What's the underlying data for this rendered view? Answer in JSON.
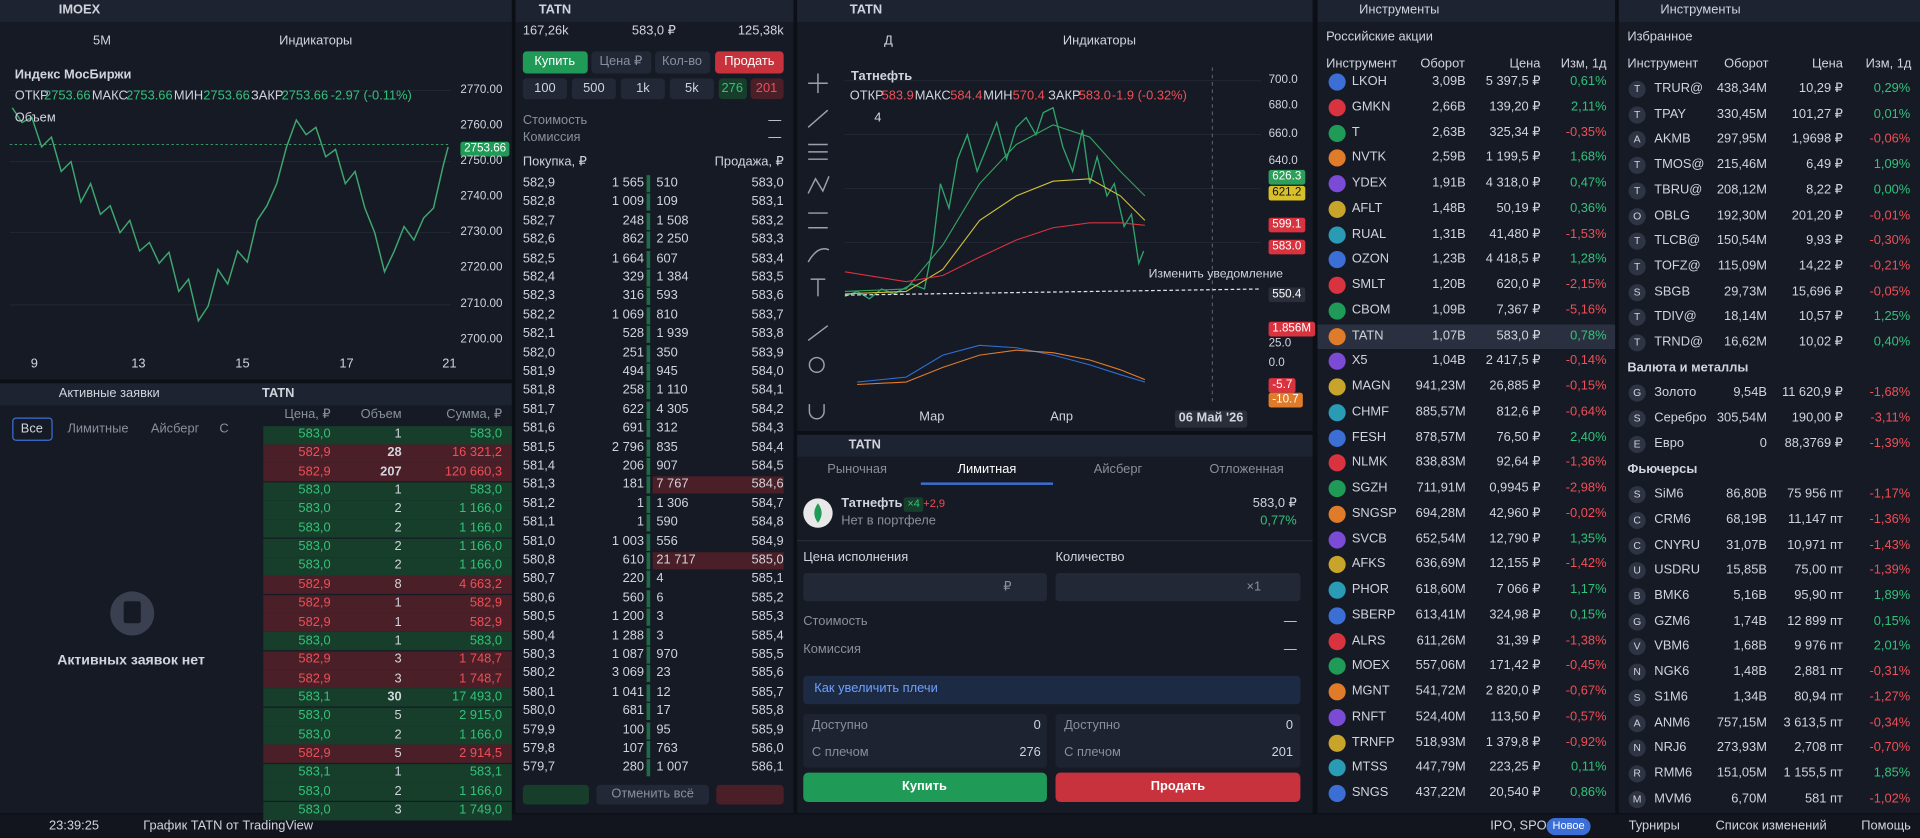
{
  "left_chart": {
    "ticker": "IMOEX",
    "timeframe": "5M",
    "indicators": "Индикаторы",
    "title": "Индекс МосБиржи",
    "ohlc": [
      [
        "ОТКР",
        "2753.66"
      ],
      [
        "МАКС",
        "2753.66"
      ],
      [
        "МИН",
        "2753.66"
      ],
      [
        "ЗАКР",
        "2753.66"
      ]
    ],
    "change": "-2.97 (-0.11%)",
    "volume": "Объем",
    "price_scale": [
      "2770.00",
      "2760.00",
      "2753.66",
      "2750.00",
      "2740.00",
      "2730.00",
      "2720.00",
      "2710.00",
      "2700.00"
    ],
    "time_scale": [
      "9",
      "13",
      "15",
      "17",
      "21"
    ]
  },
  "active_orders": {
    "title": "Активные заявки",
    "tabs": [
      "Все",
      "Лимитные",
      "Айсберг",
      "С"
    ],
    "empty": "Активных заявок нет"
  },
  "trades": {
    "ticker": "TATN",
    "columns": [
      "Цена, ₽",
      "Объем",
      "Сумма, ₽"
    ],
    "rows": [
      [
        "583,0",
        "1",
        "583,0"
      ],
      [
        "582,9",
        "28",
        "16 321,2"
      ],
      [
        "582,9",
        "207",
        "120 660,3"
      ],
      [
        "583,0",
        "1",
        "583,0"
      ],
      [
        "583,0",
        "2",
        "1 166,0"
      ],
      [
        "583,0",
        "2",
        "1 166,0"
      ],
      [
        "583,0",
        "2",
        "1 166,0"
      ],
      [
        "583,0",
        "2",
        "1 166,0"
      ],
      [
        "582,9",
        "8",
        "4 663,2"
      ],
      [
        "582,9",
        "1",
        "582,9"
      ],
      [
        "582,9",
        "1",
        "582,9"
      ],
      [
        "583,0",
        "1",
        "583,0"
      ],
      [
        "582,9",
        "3",
        "1 748,7"
      ],
      [
        "582,9",
        "3",
        "1 748,7"
      ],
      [
        "583,1",
        "30",
        "17 493,0"
      ],
      [
        "583,0",
        "5",
        "2 915,0"
      ],
      [
        "583,0",
        "2",
        "1 166,0"
      ],
      [
        "582,9",
        "5",
        "2 914,5"
      ],
      [
        "583,1",
        "1",
        "583,1"
      ],
      [
        "583,0",
        "2",
        "1 166,0"
      ],
      [
        "583,0",
        "3",
        "1 749,0"
      ]
    ],
    "sides": [
      "buy",
      "sell",
      "sell",
      "buy",
      "buy",
      "buy",
      "buy",
      "buy",
      "sell",
      "sell",
      "sell",
      "buy",
      "sell",
      "sell",
      "buy",
      "buy",
      "buy",
      "sell",
      "buy",
      "buy",
      "buy"
    ]
  },
  "order_book": {
    "ticker": "TATN",
    "bid_total": "167,26k",
    "last": "583,0 ₽",
    "ask_total": "125,38k",
    "buy": "Купить",
    "price_field": "Цена ₽",
    "qty_field": "Кол-во",
    "sell": "Продать",
    "quick_qty": [
      "100",
      "500",
      "1k",
      "5k"
    ],
    "max_buy": "276",
    "max_sell": "201",
    "cost": "Стоимость",
    "cost_value": "—",
    "fee": "Комиссия",
    "fee_value": "—",
    "bid_header": "Покупка, ₽",
    "ask_header": "Продажа, ₽",
    "cancel_all": "Отменить всё",
    "rows": [
      [
        "582,9",
        "1 565",
        "510",
        "583,0"
      ],
      [
        "582,8",
        "1 009",
        "109",
        "583,1"
      ],
      [
        "582,7",
        "248",
        "1 508",
        "583,2"
      ],
      [
        "582,6",
        "862",
        "2 250",
        "583,3"
      ],
      [
        "582,5",
        "1 664",
        "607",
        "583,4"
      ],
      [
        "582,4",
        "329",
        "1 384",
        "583,5"
      ],
      [
        "582,3",
        "316",
        "593",
        "583,6"
      ],
      [
        "582,2",
        "1 069",
        "810",
        "583,7"
      ],
      [
        "582,1",
        "528",
        "1 939",
        "583,8"
      ],
      [
        "582,0",
        "251",
        "350",
        "583,9"
      ],
      [
        "581,9",
        "494",
        "945",
        "584,0"
      ],
      [
        "581,8",
        "258",
        "1 110",
        "584,1"
      ],
      [
        "581,7",
        "622",
        "4 305",
        "584,2"
      ],
      [
        "581,6",
        "691",
        "312",
        "584,3"
      ],
      [
        "581,5",
        "2 796",
        "835",
        "584,4"
      ],
      [
        "581,4",
        "206",
        "907",
        "584,5"
      ],
      [
        "581,3",
        "181",
        "7 767",
        "584,6"
      ],
      [
        "581,2",
        "1",
        "1 306",
        "584,7"
      ],
      [
        "581,1",
        "1",
        "590",
        "584,8"
      ],
      [
        "581,0",
        "1 003",
        "556",
        "584,9"
      ],
      [
        "580,8",
        "610",
        "21 717",
        "585,0"
      ],
      [
        "580,7",
        "220",
        "4",
        "585,1"
      ],
      [
        "580,6",
        "560",
        "6",
        "585,2"
      ],
      [
        "580,5",
        "1 200",
        "3",
        "585,3"
      ],
      [
        "580,4",
        "1 288",
        "3",
        "585,4"
      ],
      [
        "580,3",
        "1 087",
        "970",
        "585,5"
      ],
      [
        "580,2",
        "3 069",
        "23",
        "585,6"
      ],
      [
        "580,1",
        "1 041",
        "12",
        "585,7"
      ],
      [
        "580,0",
        "681",
        "17",
        "585,8"
      ],
      [
        "579,9",
        "100",
        "95",
        "585,9"
      ],
      [
        "579,8",
        "107",
        "763",
        "586,0"
      ],
      [
        "579,7",
        "280",
        "1 007",
        "586,1"
      ]
    ]
  },
  "chart": {
    "ticker": "TATN",
    "timeframe": "Д",
    "indicators": "Индикаторы",
    "title": "Татнефть",
    "ohlc": [
      [
        "ОТКР",
        "583.9"
      ],
      [
        "МАКС",
        "584.4"
      ],
      [
        "МИН",
        "570.4"
      ],
      [
        "ЗАКР",
        "583.0"
      ]
    ],
    "change": "-1.9 (-0.32%)",
    "indicator_count": "4",
    "price_scale": [
      "700.0",
      "680.0",
      "660.0",
      "640.0",
      "626.3",
      "621.2",
      "599.1",
      "583.0",
      "550.4",
      "1.856M",
      "25.0",
      "0.0",
      "-5.7",
      "-10.7"
    ],
    "alert": "Изменить уведомление",
    "time_scale": [
      "Мар",
      "Апр"
    ],
    "cursor_date": "06 Май '26"
  },
  "order_form": {
    "ticker": "TATN",
    "tabs": [
      "Рыночная",
      "Лимитная",
      "Айсберг",
      "Отложенная"
    ],
    "name": "Татнефть",
    "leverage": "×4",
    "leverage_change": "+2,9",
    "portfolio": "Нет в портфеле",
    "price": "583,0 ₽",
    "change": "0,77%",
    "price_label": "Цена исполнения",
    "qty_label": "Количество",
    "price_unit": "₽",
    "qty_unit": "×1",
    "cost": "Стоимость",
    "cost_value": "—",
    "fee": "Комиссия",
    "fee_value": "—",
    "hint": "Как увеличить плечи",
    "buy_available": [
      "Доступно",
      "0"
    ],
    "buy_leverage": [
      "С плечом",
      "276"
    ],
    "sell_available": [
      "Доступно",
      "0"
    ],
    "sell_leverage": [
      "С плечом",
      "201"
    ],
    "buy": "Купить",
    "sell": "Продать"
  },
  "instruments": {
    "title": "Инструменты",
    "list": "Российские акции",
    "columns": [
      "Инструмент",
      "Оборот",
      "Цена",
      "Изм, 1д"
    ],
    "selected": "TATN",
    "rows": [
      [
        "LKOH",
        "3,09B",
        "5 397,5 ₽",
        "0,61%"
      ],
      [
        "GMKN",
        "2,66B",
        "139,20 ₽",
        "2,11%"
      ],
      [
        "T",
        "2,63B",
        "325,34 ₽",
        "-0,35%"
      ],
      [
        "NVTK",
        "2,59B",
        "1 199,5 ₽",
        "1,68%"
      ],
      [
        "YDEX",
        "1,91B",
        "4 318,0 ₽",
        "0,47%"
      ],
      [
        "AFLT",
        "1,48B",
        "50,19 ₽",
        "0,36%"
      ],
      [
        "RUAL",
        "1,31B",
        "41,480 ₽",
        "-1,53%"
      ],
      [
        "OZON",
        "1,23B",
        "4 418,5 ₽",
        "1,28%"
      ],
      [
        "SMLT",
        "1,20B",
        "620,0 ₽",
        "-2,15%"
      ],
      [
        "CBOM",
        "1,09B",
        "7,367 ₽",
        "-5,16%"
      ],
      [
        "TATN",
        "1,07B",
        "583,0 ₽",
        "0,78%"
      ],
      [
        "X5",
        "1,04B",
        "2 417,5 ₽",
        "-0,14%"
      ],
      [
        "MAGN",
        "941,23M",
        "26,885 ₽",
        "-0,15%"
      ],
      [
        "CHMF",
        "885,57M",
        "812,6 ₽",
        "-0,64%"
      ],
      [
        "FESH",
        "878,57M",
        "76,50 ₽",
        "2,40%"
      ],
      [
        "NLMK",
        "838,83M",
        "92,64 ₽",
        "-1,36%"
      ],
      [
        "SGZH",
        "711,91M",
        "0,9945 ₽",
        "-2,98%"
      ],
      [
        "SNGSP",
        "694,28M",
        "42,960 ₽",
        "-0,02%"
      ],
      [
        "SVCB",
        "652,54M",
        "12,790 ₽",
        "1,35%"
      ],
      [
        "AFKS",
        "636,69M",
        "12,155 ₽",
        "-1,42%"
      ],
      [
        "PHOR",
        "618,60M",
        "7 066 ₽",
        "1,17%"
      ],
      [
        "SBERP",
        "613,41M",
        "324,98 ₽",
        "0,15%"
      ],
      [
        "ALRS",
        "611,26M",
        "31,39 ₽",
        "-1,38%"
      ],
      [
        "MOEX",
        "557,06M",
        "171,42 ₽",
        "-0,45%"
      ],
      [
        "MGNT",
        "541,72M",
        "2 820,0 ₽",
        "-0,67%"
      ],
      [
        "RNFT",
        "524,40M",
        "113,50 ₽",
        "-0,57%"
      ],
      [
        "TRNFP",
        "518,93M",
        "1 379,8 ₽",
        "-0,92%"
      ],
      [
        "MTSS",
        "447,79M",
        "223,25 ₽",
        "0,11%"
      ],
      [
        "SNGS",
        "437,22M",
        "20,540 ₽",
        "0,86%"
      ]
    ]
  },
  "favorites": {
    "title": "Инструменты",
    "list": "Избранное",
    "columns": [
      "Инструмент",
      "Оборот",
      "Цена",
      "Изм, 1д"
    ],
    "sections": [
      {
        "rows": [
          [
            "T",
            "TRUR@",
            "438,34M",
            "10,29 ₽",
            "0,29%"
          ],
          [
            "T",
            "TPAY",
            "330,45M",
            "101,27 ₽",
            "0,01%"
          ],
          [
            "A",
            "AKMB",
            "297,95M",
            "1,9698 ₽",
            "-0,06%"
          ],
          [
            "T",
            "TMOS@",
            "215,46M",
            "6,49 ₽",
            "1,09%"
          ],
          [
            "T",
            "TBRU@",
            "208,12M",
            "8,22 ₽",
            "0,00%"
          ],
          [
            "O",
            "OBLG",
            "192,30M",
            "201,20 ₽",
            "-0,01%"
          ],
          [
            "T",
            "TLCB@",
            "150,54M",
            "9,93 ₽",
            "-0,30%"
          ],
          [
            "T",
            "TOFZ@",
            "115,09M",
            "14,22 ₽",
            "-0,21%"
          ],
          [
            "S",
            "SBGB",
            "29,73M",
            "15,696 ₽",
            "-0,05%"
          ],
          [
            "T",
            "TDIV@",
            "18,14M",
            "10,57 ₽",
            "1,25%"
          ],
          [
            "T",
            "TRND@",
            "16,62M",
            "10,02 ₽",
            "0,40%"
          ]
        ]
      },
      {
        "title": "Валюта и металлы",
        "rows": [
          [
            "G",
            "Золото",
            "9,54B",
            "11 620,9 ₽",
            "-1,68%"
          ],
          [
            "S",
            "Серебро",
            "305,54M",
            "190,00 ₽",
            "-3,11%"
          ],
          [
            "E",
            "Евро",
            "0",
            "88,3769 ₽",
            "-1,39%"
          ]
        ]
      },
      {
        "title": "Фьючерсы",
        "rows": [
          [
            "S",
            "SiM6",
            "86,80B",
            "75 956 пт",
            "-1,17%"
          ],
          [
            "C",
            "CRM6",
            "68,19B",
            "11,147 пт",
            "-1,36%"
          ],
          [
            "C",
            "CNYRU",
            "31,07B",
            "10,971 пт",
            "-1,43%"
          ],
          [
            "U",
            "USDRU",
            "15,85B",
            "75,00 пт",
            "-1,39%"
          ],
          [
            "B",
            "BMK6",
            "5,16B",
            "95,90 пт",
            "1,89%"
          ],
          [
            "G",
            "GZM6",
            "1,74B",
            "12 899 пт",
            "0,15%"
          ],
          [
            "V",
            "VBM6",
            "1,68B",
            "9 976 пт",
            "2,01%"
          ],
          [
            "N",
            "NGK6",
            "1,48B",
            "2,881 пт",
            "-0,31%"
          ],
          [
            "S",
            "S1M6",
            "1,34B",
            "80,94 пт",
            "-1,27%"
          ],
          [
            "A",
            "ANM6",
            "757,15M",
            "3 613,5 пт",
            "-0,34%"
          ],
          [
            "N",
            "NRJ6",
            "273,93M",
            "2,708 пт",
            "-0,70%"
          ],
          [
            "R",
            "RMM6",
            "151,05M",
            "1 155,5 пт",
            "1,85%"
          ],
          [
            "M",
            "MVM6",
            "6,70M",
            "581 пт",
            "-1,02%"
          ]
        ]
      }
    ]
  },
  "status_bar": {
    "time": "23:39:25",
    "chart_source": "График TATN от TradingView",
    "ipo": "IPO, SPO",
    "new_badge": "Новое",
    "tournaments": "Турниры",
    "changelog": "Список изменений",
    "help": "Помощь"
  }
}
